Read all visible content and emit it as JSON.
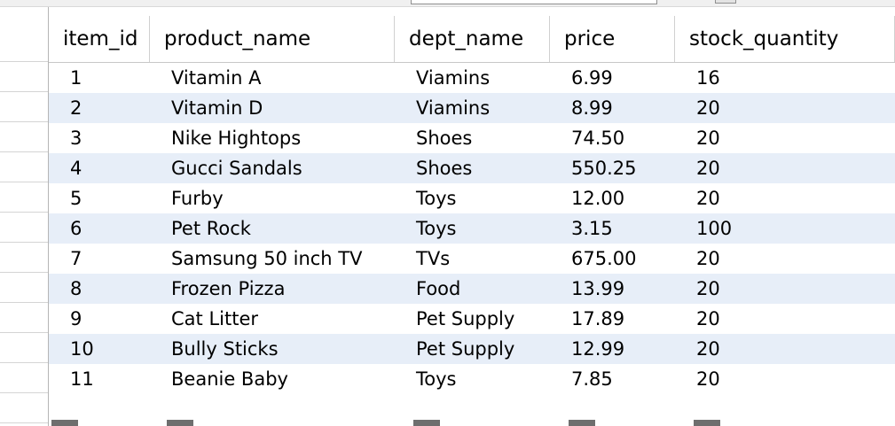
{
  "columns": [
    "item_id",
    "product_name",
    "dept_name",
    "price",
    "stock_quantity"
  ],
  "rows": [
    [
      "1",
      "Vitamin A",
      "Viamins",
      "6.99",
      "16"
    ],
    [
      "2",
      "Vitamin D",
      "Viamins",
      "8.99",
      "20"
    ],
    [
      "3",
      "Nike Hightops",
      "Shoes",
      "74.50",
      "20"
    ],
    [
      "4",
      "Gucci Sandals",
      "Shoes",
      "550.25",
      "20"
    ],
    [
      "5",
      "Furby",
      "Toys",
      "12.00",
      "20"
    ],
    [
      "6",
      "Pet Rock",
      "Toys",
      "3.15",
      "100"
    ],
    [
      "7",
      "Samsung 50 inch TV",
      "TVs",
      "675.00",
      "20"
    ],
    [
      "8",
      "Frozen Pizza",
      "Food",
      "13.99",
      "20"
    ],
    [
      "9",
      "Cat Litter",
      "Pet Supply",
      "17.89",
      "20"
    ],
    [
      "10",
      "Bully Sticks",
      "Pet Supply",
      "12.99",
      "20"
    ],
    [
      "11",
      "Beanie Baby",
      "Toys",
      "7.85",
      "20"
    ]
  ],
  "colors": {
    "alt_row": "#e7eef8",
    "grid_line": "#d0d0d0",
    "toolbar": "#f0f0f0"
  }
}
